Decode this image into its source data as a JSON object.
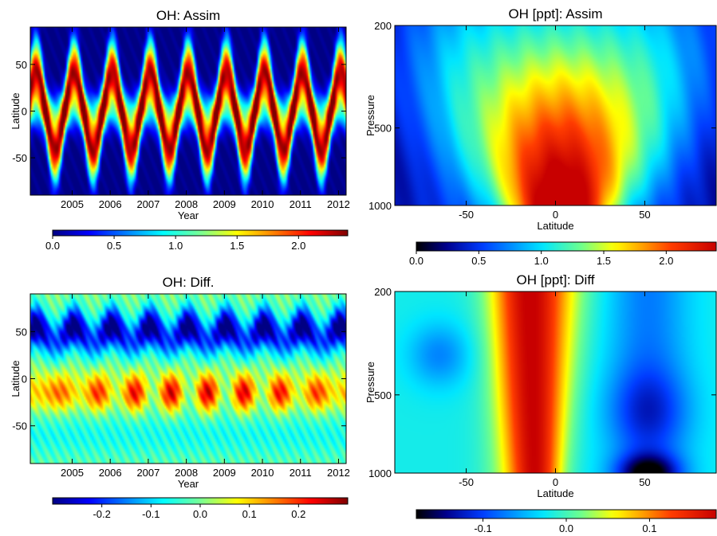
{
  "chart_data": [
    {
      "type": "heatmap",
      "title": "OH: Assim",
      "xlabel": "Year",
      "ylabel": "Latitude",
      "x_ticks": [
        "2005",
        "2006",
        "2007",
        "2008",
        "2009",
        "2010",
        "2011",
        "2012"
      ],
      "y_ticks": [
        "50",
        "0",
        "-50"
      ],
      "xlim": [
        2004.4,
        2012.7
      ],
      "ylim": [
        -90,
        90
      ],
      "colorbar": {
        "min": 0.0,
        "max": 2.4,
        "ticks": [
          "0.0",
          "0.5",
          "1.0",
          "1.5",
          "2.0"
        ],
        "colormap": "jet"
      }
    },
    {
      "type": "heatmap",
      "title": "OH [ppt]: Assim",
      "xlabel": "Latitude",
      "ylabel": "Pressure",
      "x_ticks": [
        "-50",
        "0",
        "50"
      ],
      "y_ticks": [
        "200",
        "500",
        "1000"
      ],
      "xlim": [
        -90,
        90
      ],
      "ylim": [
        1000,
        200
      ],
      "y_scale": "log",
      "colorbar": {
        "min": 0.0,
        "max": 2.4,
        "ticks": [
          "0.0",
          "0.5",
          "1.0",
          "1.5",
          "2.0"
        ],
        "colormap": "black-jet"
      }
    },
    {
      "type": "heatmap",
      "title": "OH: Diff.",
      "xlabel": "Year",
      "ylabel": "Latitude",
      "x_ticks": [
        "2005",
        "2006",
        "2007",
        "2008",
        "2009",
        "2010",
        "2011",
        "2012"
      ],
      "y_ticks": [
        "50",
        "0",
        "-50"
      ],
      "xlim": [
        2004.4,
        2012.7
      ],
      "ylim": [
        -90,
        90
      ],
      "colorbar": {
        "min": -0.3,
        "max": 0.3,
        "ticks": [
          "-0.2",
          "-0.1",
          "0.0",
          "0.1",
          "0.2"
        ],
        "colormap": "jet"
      }
    },
    {
      "type": "heatmap",
      "title": "OH [ppt]: Diff",
      "xlabel": "Latitude",
      "ylabel": "Pressure",
      "x_ticks": [
        "-50",
        "0",
        "50"
      ],
      "y_ticks": [
        "200",
        "500",
        "1000"
      ],
      "xlim": [
        -90,
        90
      ],
      "ylim": [
        1000,
        200
      ],
      "y_scale": "log",
      "colorbar": {
        "min": -0.18,
        "max": 0.18,
        "ticks": [
          "-0.1",
          "0.0",
          "0.1"
        ],
        "colormap": "black-jet"
      }
    }
  ]
}
